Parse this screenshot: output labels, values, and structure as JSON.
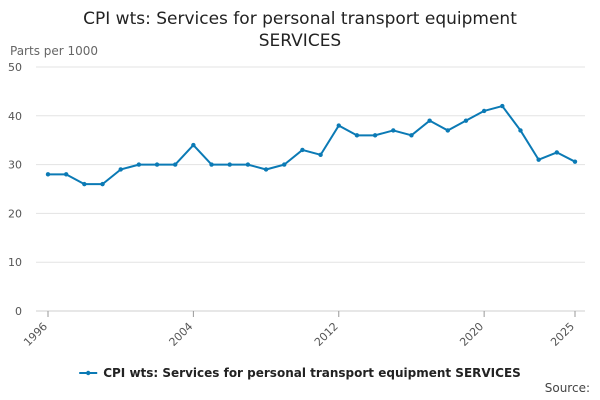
{
  "chart_data": {
    "type": "line",
    "title_line1": "CPI wts: Services for personal transport equipment",
    "title_line2": "SERVICES",
    "ylabel": "Parts per 1000",
    "xlabel": "",
    "x": [
      1996,
      1997,
      1998,
      1999,
      2000,
      2001,
      2002,
      2003,
      2004,
      2005,
      2006,
      2007,
      2008,
      2009,
      2010,
      2011,
      2012,
      2013,
      2014,
      2015,
      2016,
      2017,
      2018,
      2019,
      2020,
      2021,
      2022,
      2023,
      2024,
      2025
    ],
    "series": [
      {
        "name": "CPI wts: Services for personal transport equipment SERVICES",
        "values": [
          28,
          28,
          26,
          26,
          29,
          30,
          30,
          30,
          34,
          30,
          30,
          30,
          29,
          30,
          33,
          32,
          38,
          36,
          36,
          37,
          36,
          39,
          37,
          39,
          41,
          42,
          37,
          31,
          32.5,
          30.6
        ]
      }
    ],
    "ylim": [
      0,
      50
    ],
    "xlim": [
      1996,
      2025
    ],
    "y_ticks": [
      0,
      10,
      20,
      30,
      40,
      50
    ],
    "x_tick_labels": [
      "1996",
      "2004",
      "2012",
      "2020",
      "2025"
    ],
    "grid": true,
    "legend_position": "bottom",
    "line_color": "#0b7ab5",
    "grid_color": "#e3e3e3",
    "source_label": "Source:"
  }
}
